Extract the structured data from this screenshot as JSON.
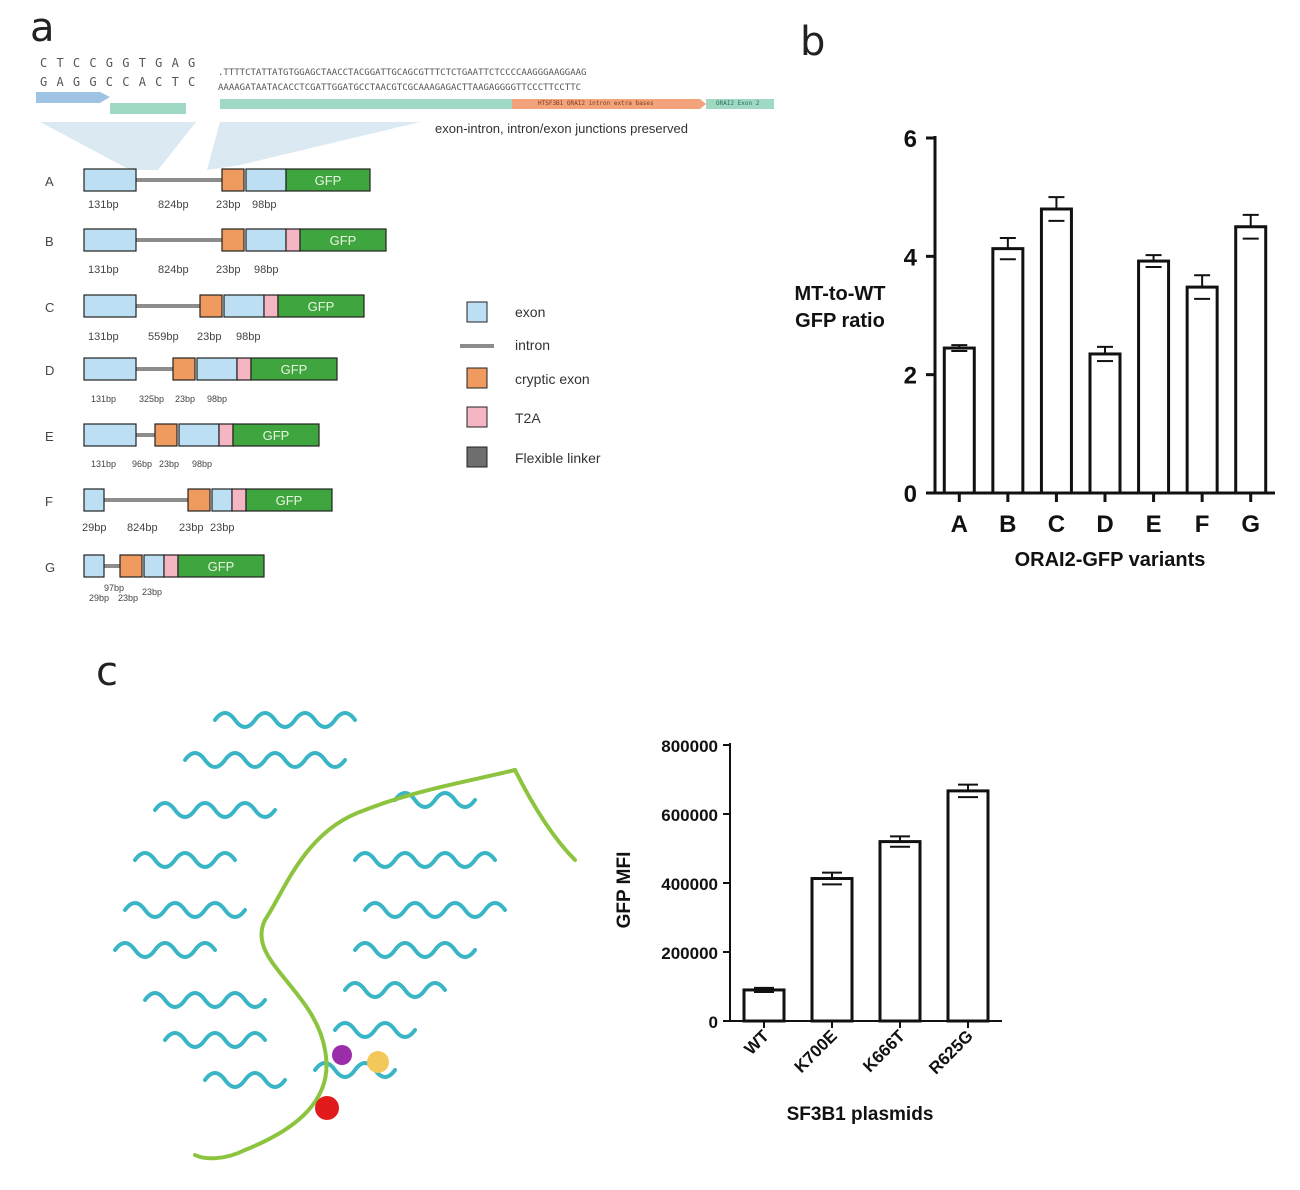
{
  "panels": {
    "a": "a",
    "b": "b",
    "c": "c"
  },
  "panel_a": {
    "seq_short": [
      "C T C C G G T G A G",
      "G A G G C C A C T C"
    ],
    "seq_long": [
      ".TTTTCTATTATGTGGAGCTAACCTACGGATTGCAGCGTTTCTCTGAATTCTCCCCAAGGGAAGGAAG",
      "AAAAGATAATACACCTCGATTGGATGCCTAACGTCGCAAAGAGACTTAAGAGGGGTTCCCTTCCTTC"
    ],
    "track_labels": [
      "HTSF3B1 ORAI2 intron extra bases",
      "ORAI2 Exon 2"
    ],
    "annotation": "exon-intron, intron/exon junctions preserved",
    "rows": [
      {
        "id": "A",
        "bp": [
          "131bp",
          "824bp",
          "23bp",
          "98bp"
        ],
        "gfp": "GFP"
      },
      {
        "id": "B",
        "bp": [
          "131bp",
          "824bp",
          "23bp",
          "98bp"
        ],
        "gfp": "GFP"
      },
      {
        "id": "C",
        "bp": [
          "131bp",
          "559bp",
          "23bp",
          "98bp"
        ],
        "gfp": "GFP"
      },
      {
        "id": "D",
        "bp": [
          "131bp",
          "325bp",
          "23bp",
          "98bp"
        ],
        "gfp": "GFP"
      },
      {
        "id": "E",
        "bp": [
          "131bp",
          "96bp",
          "23bp",
          "98bp"
        ],
        "gfp": "GFP"
      },
      {
        "id": "F",
        "bp": [
          "29bp",
          "824bp",
          "23bp",
          "23bp"
        ],
        "gfp": "GFP"
      },
      {
        "id": "G",
        "bp": [
          "97bp",
          "29bp",
          "23bp",
          "23bp"
        ],
        "gfp": "GFP"
      }
    ],
    "legend": [
      {
        "label": "exon",
        "color": "#bcdff3"
      },
      {
        "label": "intron",
        "color": "#8c8c8c"
      },
      {
        "label": "cryptic exon",
        "color": "#ef9b5f"
      },
      {
        "label": "T2A",
        "color": "#f4b6c2"
      },
      {
        "label": "Flexible linker",
        "color": "#6e6e6e"
      }
    ],
    "colors": {
      "exon": "#bcdff3",
      "intron": "#8c8c8c",
      "cryptic": "#ef9b5f",
      "t2a": "#f4b6c2",
      "gfp": "#3fa63f",
      "seq_blue": "#9fc3e3",
      "seq_green": "#9fd9c4",
      "seq_orange": "#f3a37c"
    }
  },
  "panel_c_image": {
    "protein_color": "#3ab5c6",
    "rna_color": "#8dc43f"
  },
  "chart_data": [
    {
      "type": "bar",
      "categories": [
        "A",
        "B",
        "C",
        "D",
        "E",
        "F",
        "G"
      ],
      "values": [
        2.45,
        4.13,
        4.8,
        2.35,
        3.92,
        3.48,
        4.5
      ],
      "errors": [
        0.05,
        0.18,
        0.2,
        0.12,
        0.1,
        0.2,
        0.2
      ],
      "ylabel": [
        "MT-to-WT",
        "GFP ratio"
      ],
      "xlabel": "ORAI2-GFP variants",
      "yticks": [
        "0",
        "2",
        "4",
        "6"
      ],
      "ylim": [
        0,
        6
      ]
    },
    {
      "type": "bar",
      "categories": [
        "WT",
        "K700E",
        "K666T",
        "R625G"
      ],
      "values": [
        90000,
        413000,
        520000,
        667000
      ],
      "errors": [
        6000,
        17000,
        15000,
        18000
      ],
      "ylabel": "GFP MFI",
      "xlabel": "SF3B1 plasmids",
      "yticks": [
        "0",
        "200000",
        "400000",
        "600000",
        "800000"
      ],
      "ylim": [
        0,
        800000
      ]
    }
  ]
}
